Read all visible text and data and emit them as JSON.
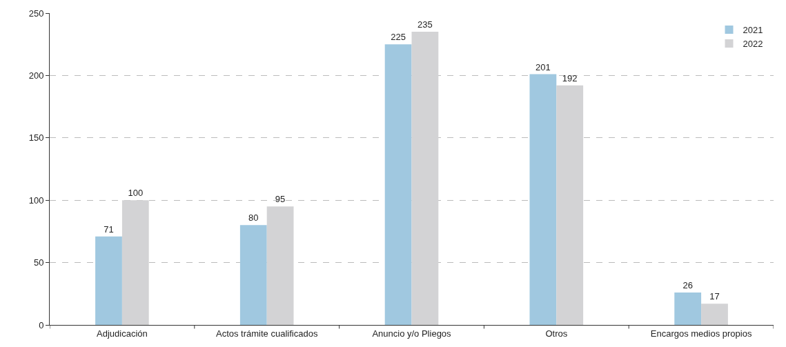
{
  "chart_data": {
    "type": "bar",
    "categories": [
      "Adjudicación",
      "Actos trámite cualificados",
      "Anuncio y/o Pliegos",
      "Otros",
      "Encargos medios propios"
    ],
    "series": [
      {
        "name": "2021",
        "color": "#a0c8e0",
        "values": [
          71,
          80,
          225,
          201,
          26
        ]
      },
      {
        "name": "2022",
        "color": "#d3d3d5",
        "values": [
          100,
          95,
          235,
          192,
          17
        ]
      }
    ],
    "ylim": [
      0,
      250
    ],
    "yticks": [
      0,
      50,
      100,
      150,
      200,
      250
    ],
    "grid": "y",
    "legend": "top right",
    "data_labels": true
  }
}
